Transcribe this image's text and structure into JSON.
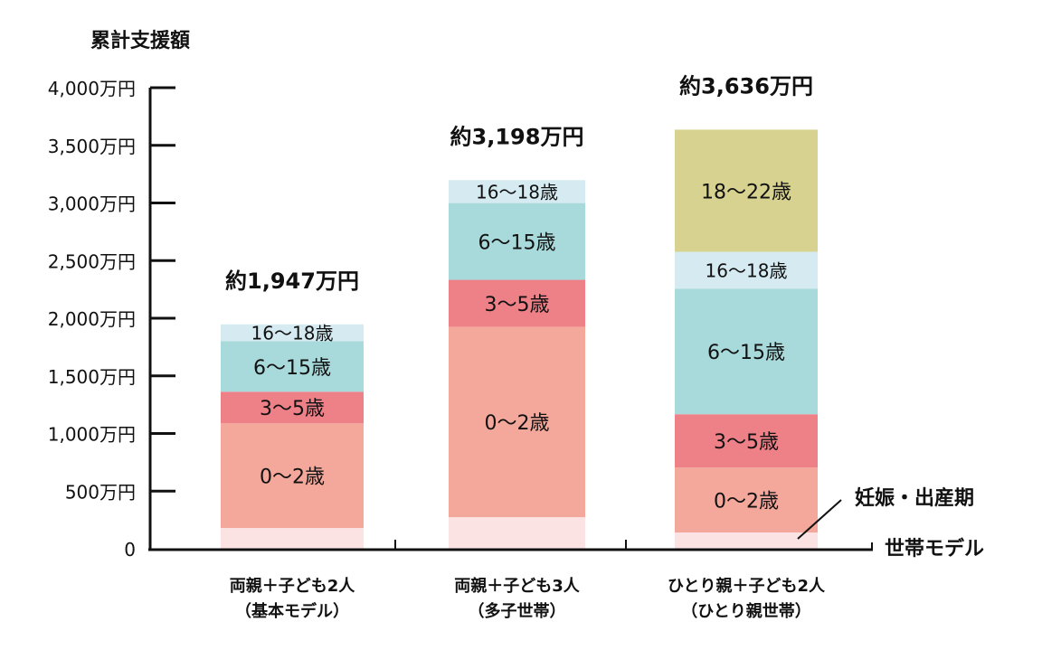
{
  "chart_data": {
    "type": "bar",
    "stacked": true,
    "ylabel": "累計支援額",
    "ylim": [
      0,
      4000
    ],
    "y_ticks": [
      "0",
      "500万円",
      "1,000万円",
      "1,500万円",
      "2,000万円",
      "2,500万円",
      "3,000万円",
      "3,500万円",
      "4,000万円"
    ],
    "x_axis_label": "世帯モデル",
    "grid": false,
    "categories": [
      {
        "line1": "両親＋子ども2人",
        "line2": "（基本モデル）"
      },
      {
        "line1": "両親＋子ども3人",
        "line2": "（多子世帯）"
      },
      {
        "line1": "ひとり親＋子ども2人",
        "line2": "（ひとり親世帯）"
      }
    ],
    "totals_labels": [
      "約1,947万円",
      "約3,198万円",
      "約3,636万円"
    ],
    "totals": [
      1947,
      3198,
      3636
    ],
    "segment_names": [
      "妊娠・出産期",
      "0〜2歳",
      "3〜5歳",
      "6〜15歳",
      "16〜18歳",
      "18〜22歳"
    ],
    "segment_colors": [
      "#fce3e3",
      "#f3a89b",
      "#ee8088",
      "#a8d9db",
      "#d5ebf1",
      "#d8d290"
    ],
    "series": [
      {
        "name": "妊娠・出産期",
        "values": [
          180,
          274,
          141
        ]
      },
      {
        "name": "0〜2歳",
        "values": [
          908,
          1652,
          564
        ]
      },
      {
        "name": "3〜5歳",
        "values": [
          274,
          407,
          462
        ]
      },
      {
        "name": "6〜15歳",
        "values": [
          438,
          666,
          1088
        ]
      },
      {
        "name": "16〜18歳",
        "values": [
          147,
          199,
          321
        ]
      },
      {
        "name": "18〜22歳",
        "values": [
          0,
          0,
          1060
        ]
      }
    ],
    "annotation": "妊娠・出産期"
  }
}
